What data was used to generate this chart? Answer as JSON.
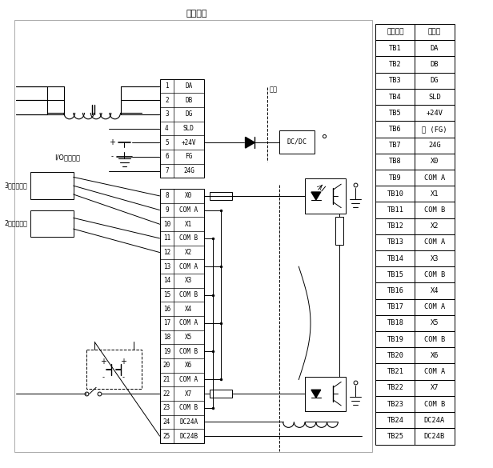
{
  "title": "外部连接",
  "table_header": [
    "端子编号",
    "信号名"
  ],
  "table_rows": [
    [
      "TB1",
      "DA"
    ],
    [
      "TB2",
      "DB"
    ],
    [
      "TB3",
      "DG"
    ],
    [
      "TB4",
      "SLD"
    ],
    [
      "TB5",
      "+24V"
    ],
    [
      "TB6",
      "⑏ (FG)"
    ],
    [
      "TB7",
      "24G"
    ],
    [
      "TB8",
      "X0"
    ],
    [
      "TB9",
      "COM A"
    ],
    [
      "TB10",
      "X1"
    ],
    [
      "TB11",
      "COM B"
    ],
    [
      "TB12",
      "X2"
    ],
    [
      "TB13",
      "COM A"
    ],
    [
      "TB14",
      "X3"
    ],
    [
      "TB15",
      "COM B"
    ],
    [
      "TB16",
      "X4"
    ],
    [
      "TB17",
      "COM A"
    ],
    [
      "TB18",
      "X5"
    ],
    [
      "TB19",
      "COM B"
    ],
    [
      "TB20",
      "X6"
    ],
    [
      "TB21",
      "COM A"
    ],
    [
      "TB22",
      "X7"
    ],
    [
      "TB23",
      "COM B"
    ],
    [
      "TB24",
      "DC24A"
    ],
    [
      "TB25",
      "DC24B"
    ]
  ],
  "pins_top": [
    [
      "1",
      "DA"
    ],
    [
      "2",
      "DB"
    ],
    [
      "3",
      "DG"
    ],
    [
      "4",
      "SLD"
    ],
    [
      "5",
      "+24V"
    ],
    [
      "6",
      "FG"
    ],
    [
      "7",
      "24G"
    ]
  ],
  "pins_bottom": [
    [
      "8",
      "X0"
    ],
    [
      "9",
      "COM A"
    ],
    [
      "10",
      "X1"
    ],
    [
      "11",
      "COM B"
    ],
    [
      "12",
      "X2"
    ],
    [
      "13",
      "COM A"
    ],
    [
      "14",
      "X3"
    ],
    [
      "15",
      "COM B"
    ],
    [
      "16",
      "X4"
    ],
    [
      "17",
      "COM A"
    ],
    [
      "18",
      "X5"
    ],
    [
      "19",
      "COM B"
    ],
    [
      "20",
      "X6"
    ],
    [
      "21",
      "COM A"
    ],
    [
      "22",
      "X7"
    ],
    [
      "23",
      "COM B"
    ],
    [
      "24",
      "DC24A"
    ],
    [
      "25",
      "DC24B"
    ]
  ],
  "label_3wire": "3线式传感器",
  "label_2wire": "2线式传感器",
  "label_power": "I/O模块电源",
  "label_insulation": "绝缘",
  "label_dcdc": "DC/DC",
  "fig_width": 6.16,
  "fig_height": 5.85,
  "dpi": 100
}
